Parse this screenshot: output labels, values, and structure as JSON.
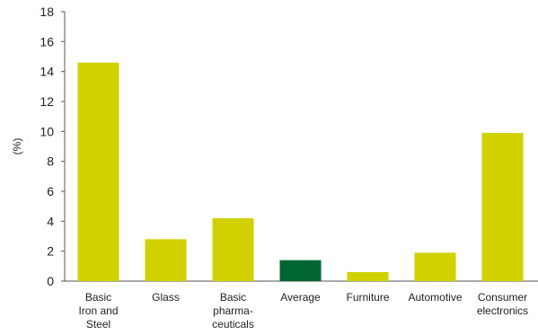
{
  "chart_data": {
    "type": "bar",
    "ylabel": "(%)",
    "ylim": [
      0,
      18
    ],
    "yticks": [
      0,
      2,
      4,
      6,
      8,
      10,
      12,
      14,
      16,
      18
    ],
    "grid": false,
    "categories": [
      [
        "Basic",
        "Iron and",
        "Steel"
      ],
      [
        "Glass"
      ],
      [
        "Basic",
        "pharma-",
        "ceuticals"
      ],
      [
        "Average"
      ],
      [
        "Furniture"
      ],
      [
        "Automotive"
      ],
      [
        "Consumer",
        "electronics"
      ]
    ],
    "values": [
      14.6,
      2.8,
      4.2,
      1.4,
      0.6,
      1.9,
      9.9
    ],
    "colors": [
      "#d1d100",
      "#d1d100",
      "#d1d100",
      "#006633",
      "#d1d100",
      "#d1d100",
      "#d1d100"
    ]
  }
}
